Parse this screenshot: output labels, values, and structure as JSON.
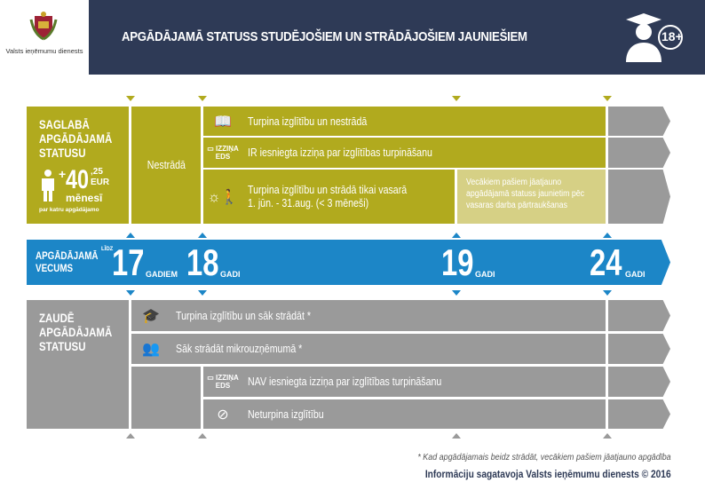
{
  "header": {
    "logo_text": "Valsts ieņēmumu dienests",
    "title": "APGĀDĀJAMĀ STATUSS STUDĒJOŠIEM UN STRĀDĀJOŠIEM JAUNIEŠIEM",
    "badge": "18+",
    "badge_icon": "graduate-icon"
  },
  "keep": {
    "heading": "SAGLABĀ APGĀDĀJAMĀ STATUSU",
    "amount_plus": "+",
    "amount_int": "40",
    "amount_dec": ",25",
    "currency": "EUR",
    "period": "mēnesī",
    "note": "par katru apgādājamo",
    "not_working": "Nestrādā",
    "rows": [
      {
        "icon": "book-icon",
        "label": "Turpina izglītību un nestrādā"
      },
      {
        "icon": "computer-eds-icon",
        "icon_text": "IZZIŅA EDS",
        "label": "IR iesniegta izziņa par izglītības turpināšanu"
      },
      {
        "icon": "summer-worker-icon",
        "label": "Turpina izglītību un strādā tikai vasarā",
        "label2": "1. jūn. - 31.aug. (< 3 mēneši)"
      }
    ],
    "renew_note": "Vecākiem pašiem jāatjauno apgādājamā statuss jaunietim pēc vasaras darba pārtraukšanas"
  },
  "age": {
    "label": "APGĀDĀJAMĀ VECUMS",
    "prefix": "LĪDZ",
    "marks": [
      {
        "value": "17",
        "unit": "GADIEM"
      },
      {
        "value": "18",
        "unit": "GADI"
      },
      {
        "value": "19",
        "unit": "GADI"
      },
      {
        "value": "24",
        "unit": "GADI"
      }
    ]
  },
  "lose": {
    "heading": "ZAUDĒ APGĀDĀJAMĀ STATUSU",
    "rows": [
      {
        "icon": "graduate-icon",
        "label": "Turpina izglītību un sāk strādāt *"
      },
      {
        "icon": "people-icon",
        "label": "Sāk strādāt mikrouzņēmumā *"
      },
      {
        "icon": "computer-eds-icon",
        "icon_text": "IZZIŅA EDS",
        "label": "NAV iesniegta izziņa par izglītības turpināšanu"
      },
      {
        "icon": "no-education-icon",
        "label": "Neturpina izglītību"
      }
    ]
  },
  "footer": {
    "footnote": "* Kad apgādājamais beidz strādāt, vecākiem pašiem jāatjauno apgādība",
    "credit": "Informāciju sagatavoja Valsts ieņēmumu dienests © 2016"
  },
  "colors": {
    "navy": "#2e3a56",
    "olive": "#b1aa1e",
    "light_olive": "#d6d085",
    "blue": "#1c86c7",
    "gray": "#9a9a9a"
  }
}
